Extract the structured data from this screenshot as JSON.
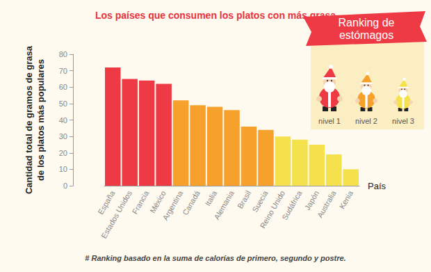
{
  "chart_data": {
    "type": "bar",
    "title": "Los países que consumen los platos con más grasa",
    "y_label": "Cantidad total de gramos de grasa\nde los platos más populares",
    "x_label": "País",
    "categories": [
      "España",
      "Estados Unidos",
      "Francia",
      "México",
      "Argentina",
      "Canadá",
      "Italia",
      "Alemania",
      "Brasil",
      "Suecia",
      "Reino Unido",
      "Sudáfrica",
      "Japón",
      "Australia",
      "Kenia"
    ],
    "values": [
      72,
      65,
      64,
      62,
      52,
      49,
      48,
      46,
      36,
      34,
      30,
      28,
      25,
      19,
      10
    ],
    "colors": [
      "#ee3a45",
      "#ee3a45",
      "#ee3a45",
      "#ee3a45",
      "#f6a12c",
      "#f6a12c",
      "#f6a12c",
      "#f6a12c",
      "#f6a12c",
      "#f6a12c",
      "#f5e14b",
      "#f5e14b",
      "#f5e14b",
      "#f5e14b",
      "#f5e14b"
    ],
    "ylim": [
      0,
      80
    ],
    "yticks": [
      0,
      10,
      20,
      30,
      40,
      50,
      60,
      70,
      80
    ],
    "grid": false,
    "annotations": {
      "ranking_title": "Ranking de\nestómagos",
      "levels": [
        {
          "label": "nivel 1",
          "color": "#ee3a45"
        },
        {
          "label": "nivel 2",
          "color": "#f6a12c"
        },
        {
          "label": "nivel 3",
          "color": "#f5e14b"
        }
      ],
      "footnote": "# Ranking basado en la suma de calorías de primero, segundo y postre."
    }
  }
}
